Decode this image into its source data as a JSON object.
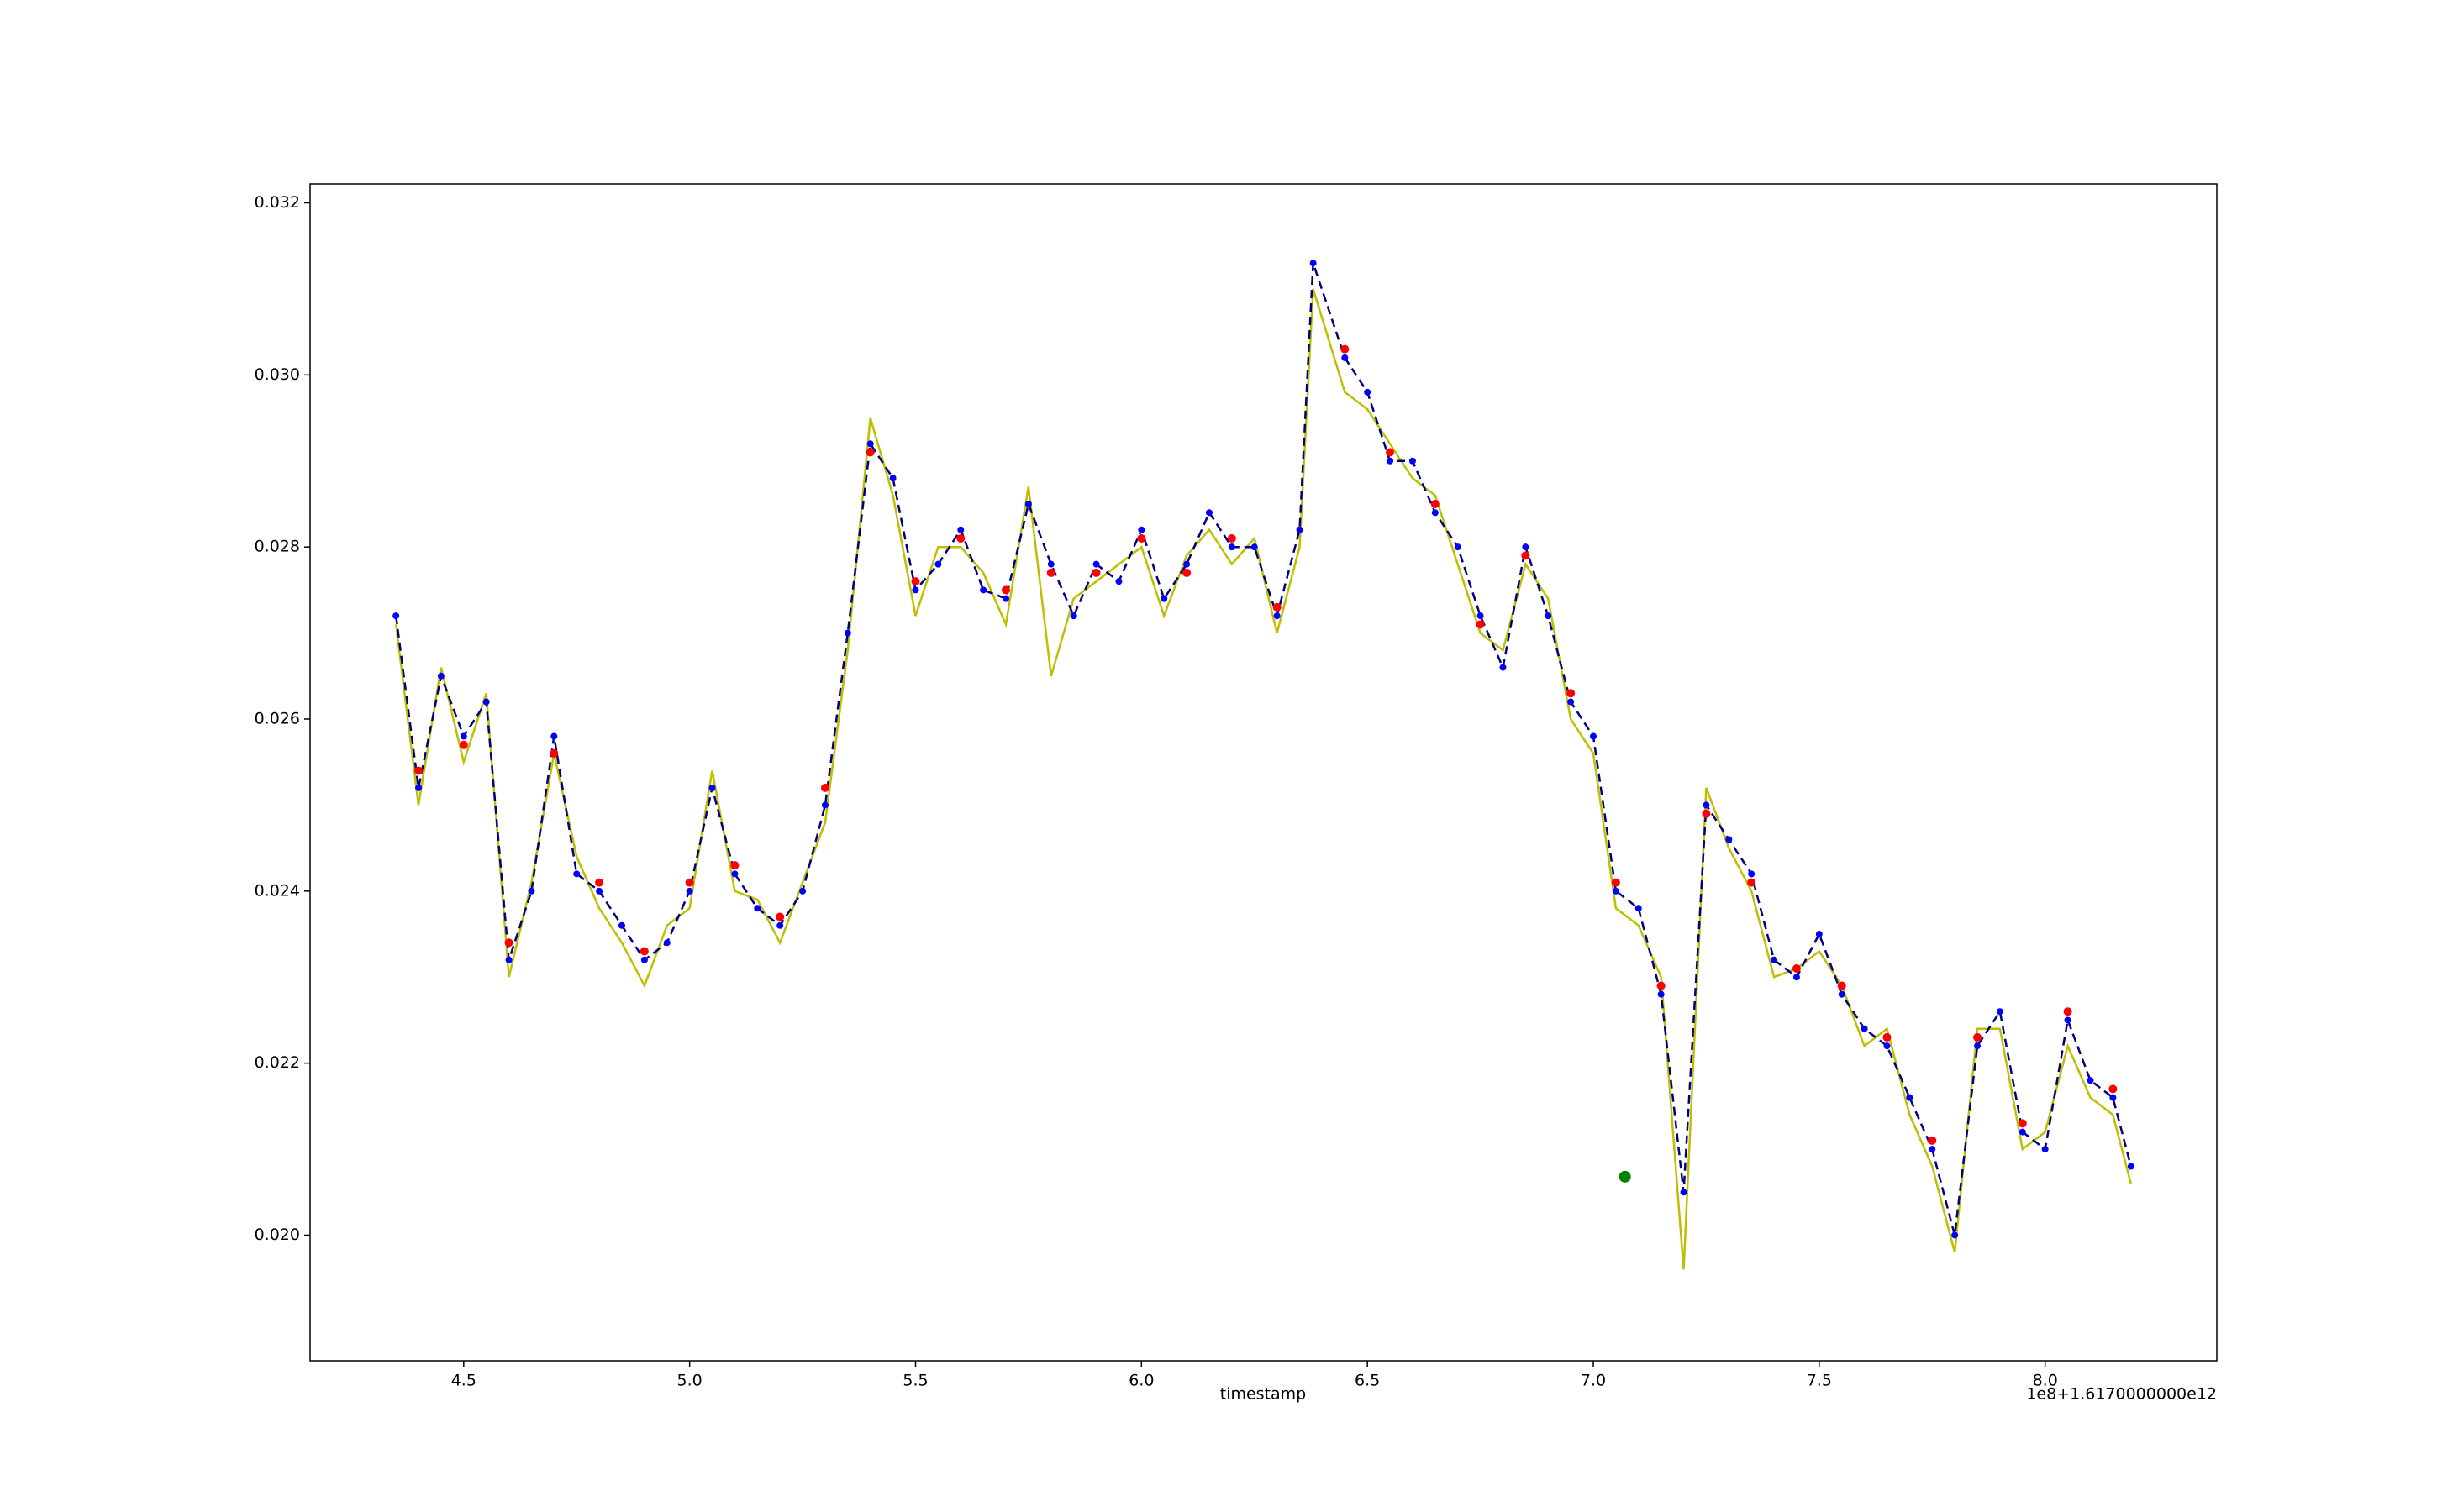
{
  "chart_data": {
    "type": "line",
    "x_label": "timestamp",
    "x_offset_label": "1e8+1.6170000000e12",
    "xlim": [
      4.16,
      8.38
    ],
    "ylim": [
      0.01854,
      0.03222
    ],
    "xticks": [
      4.5,
      {
        "value": 5,
        "label": "5.0"
      },
      5.5,
      {
        "value": 6,
        "label": "6.0"
      },
      6.5,
      {
        "value": 7,
        "label": "7.0"
      },
      7.5,
      {
        "value": 8,
        "label": "8.0"
      }
    ],
    "yticks": [
      {
        "value": 0.02,
        "label": "0.020"
      },
      0.022,
      0.024,
      0.026,
      0.028,
      {
        "value": 0.03,
        "label": "0.030"
      },
      0.032
    ],
    "grid": false,
    "series": [
      {
        "color": "#bfbf00",
        "style": "line",
        "x": [
          4.35,
          4.4,
          4.45,
          4.5,
          4.55,
          4.6,
          4.65,
          4.7,
          4.75,
          4.8,
          4.85,
          4.9,
          4.95,
          5,
          5.05,
          5.1,
          5.15,
          5.2,
          5.25,
          5.3,
          5.35,
          5.4,
          5.45,
          5.5,
          5.55,
          5.6,
          5.65,
          5.7,
          5.75,
          5.8,
          5.85,
          5.9,
          5.95,
          6,
          6.05,
          6.1,
          6.15,
          6.2,
          6.25,
          6.3,
          6.35,
          6.38,
          6.45,
          6.5,
          6.55,
          6.6,
          6.65,
          6.7,
          6.75,
          6.8,
          6.85,
          6.9,
          6.95,
          7,
          7.05,
          7.1,
          7.15,
          7.2,
          7.25,
          7.3,
          7.35,
          7.4,
          7.45,
          7.5,
          7.55,
          7.6,
          7.65,
          7.7,
          7.75,
          7.8,
          7.85,
          7.9,
          7.95,
          8,
          8.05,
          8.1,
          8.15,
          8.19
        ],
        "values": [
          0.0271,
          0.025,
          0.0266,
          0.0255,
          0.0263,
          0.023,
          0.0241,
          0.0256,
          0.0244,
          0.0238,
          0.0234,
          0.0229,
          0.0236,
          0.0238,
          0.0254,
          0.024,
          0.0239,
          0.0234,
          0.0241,
          0.0248,
          0.0268,
          0.0295,
          0.0286,
          0.0272,
          0.028,
          0.028,
          0.0277,
          0.0271,
          0.0287,
          0.0265,
          0.0274,
          0.0276,
          0.0278,
          0.028,
          0.0272,
          0.0279,
          0.0282,
          0.0278,
          0.0281,
          0.027,
          0.028,
          0.031,
          0.0298,
          0.0296,
          0.0292,
          0.0288,
          0.0286,
          0.0278,
          0.027,
          0.0268,
          0.0278,
          0.0274,
          0.026,
          0.0256,
          0.0238,
          0.0236,
          0.023,
          0.0196,
          0.0252,
          0.0245,
          0.024,
          0.023,
          0.0231,
          0.0233,
          0.0229,
          0.0222,
          0.0224,
          0.0214,
          0.0208,
          0.0198,
          0.0224,
          0.0224,
          0.021,
          0.0212,
          0.0222,
          0.0216,
          0.0214,
          0.0206
        ]
      },
      {
        "color": "#0000ff",
        "style": "dashed-markers",
        "x": [
          4.35,
          4.4,
          4.45,
          4.5,
          4.55,
          4.6,
          4.65,
          4.7,
          4.75,
          4.8,
          4.85,
          4.9,
          4.95,
          5,
          5.05,
          5.1,
          5.15,
          5.2,
          5.25,
          5.3,
          5.35,
          5.4,
          5.45,
          5.5,
          5.55,
          5.6,
          5.65,
          5.7,
          5.75,
          5.8,
          5.85,
          5.9,
          5.95,
          6,
          6.05,
          6.1,
          6.15,
          6.2,
          6.25,
          6.3,
          6.35,
          6.38,
          6.45,
          6.5,
          6.55,
          6.6,
          6.65,
          6.7,
          6.75,
          6.8,
          6.85,
          6.9,
          6.95,
          7,
          7.05,
          7.1,
          7.15,
          7.2,
          7.25,
          7.3,
          7.35,
          7.4,
          7.45,
          7.5,
          7.55,
          7.6,
          7.65,
          7.7,
          7.75,
          7.8,
          7.85,
          7.9,
          7.95,
          8,
          8.05,
          8.1,
          8.15,
          8.19
        ],
        "values": [
          0.0272,
          0.0252,
          0.0265,
          0.0258,
          0.0262,
          0.0232,
          0.024,
          0.0258,
          0.0242,
          0.024,
          0.0236,
          0.0232,
          0.0234,
          0.024,
          0.0252,
          0.0242,
          0.0238,
          0.0236,
          0.024,
          0.025,
          0.027,
          0.0292,
          0.0288,
          0.0275,
          0.0278,
          0.0282,
          0.0275,
          0.0274,
          0.0285,
          0.0278,
          0.0272,
          0.0278,
          0.0276,
          0.0282,
          0.0274,
          0.0278,
          0.0284,
          0.028,
          0.028,
          0.0272,
          0.0282,
          0.0313,
          0.0302,
          0.0298,
          0.029,
          0.029,
          0.0284,
          0.028,
          0.0272,
          0.0266,
          0.028,
          0.0272,
          0.0262,
          0.0258,
          0.024,
          0.0238,
          0.0228,
          0.0205,
          0.025,
          0.0246,
          0.0242,
          0.0232,
          0.023,
          0.0235,
          0.0228,
          0.0224,
          0.0222,
          0.0216,
          0.021,
          0.02,
          0.0222,
          0.0226,
          0.0212,
          0.021,
          0.0225,
          0.0218,
          0.0216,
          0.0208
        ]
      },
      {
        "color": "#ff0000",
        "style": "markers",
        "x": [
          4.4,
          4.5,
          4.6,
          4.7,
          4.8,
          4.9,
          5,
          5.1,
          5.2,
          5.3,
          5.4,
          5.5,
          5.6,
          5.7,
          5.8,
          5.9,
          6,
          6.1,
          6.2,
          6.3,
          6.45,
          6.55,
          6.65,
          6.75,
          6.85,
          6.95,
          7.05,
          7.15,
          7.25,
          7.35,
          7.45,
          7.55,
          7.65,
          7.75,
          7.85,
          7.95,
          8.05,
          8.15
        ],
        "values": [
          0.0254,
          0.0257,
          0.0234,
          0.0256,
          0.0241,
          0.0233,
          0.0241,
          0.0243,
          0.0237,
          0.0252,
          0.0291,
          0.0276,
          0.0281,
          0.0275,
          0.0277,
          0.0277,
          0.0281,
          0.0277,
          0.0281,
          0.0273,
          0.0303,
          0.0291,
          0.0285,
          0.0271,
          0.0279,
          0.0263,
          0.0241,
          0.0229,
          0.0249,
          0.0241,
          0.0231,
          0.0229,
          0.0223,
          0.0211,
          0.0223,
          0.0213,
          0.0226,
          0.0217
        ]
      },
      {
        "color": "#008000",
        "style": "markers",
        "x": [
          7.07
        ],
        "values": [
          0.02068
        ]
      }
    ]
  }
}
